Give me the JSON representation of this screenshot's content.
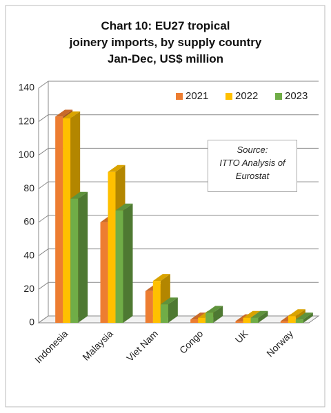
{
  "chart_data": {
    "type": "bar3d",
    "title": "Chart 10: EU27 tropical\njoinery imports, by supply country\nJan-Dec, US$ million",
    "annotation": "Source:\nITTO Analysis of\nEurostat",
    "categories": [
      "Indonesia",
      "Malaysia",
      "Viet Nam",
      "Congo",
      "UK",
      "Norway"
    ],
    "series": [
      {
        "name": "2021",
        "color": "#ED7D31",
        "values": [
          123,
          60,
          19,
          2,
          1,
          1
        ]
      },
      {
        "name": "2022",
        "color": "#FFC000",
        "values": [
          122,
          90,
          25,
          3,
          3,
          4
        ]
      },
      {
        "name": "2023",
        "color": "#70AD47",
        "values": [
          74,
          67,
          11,
          6,
          3,
          2
        ]
      }
    ],
    "ylim": [
      0,
      140
    ],
    "yticks": [
      0,
      20,
      40,
      60,
      80,
      100,
      120,
      140
    ],
    "grid": true,
    "legend": "top-right"
  }
}
